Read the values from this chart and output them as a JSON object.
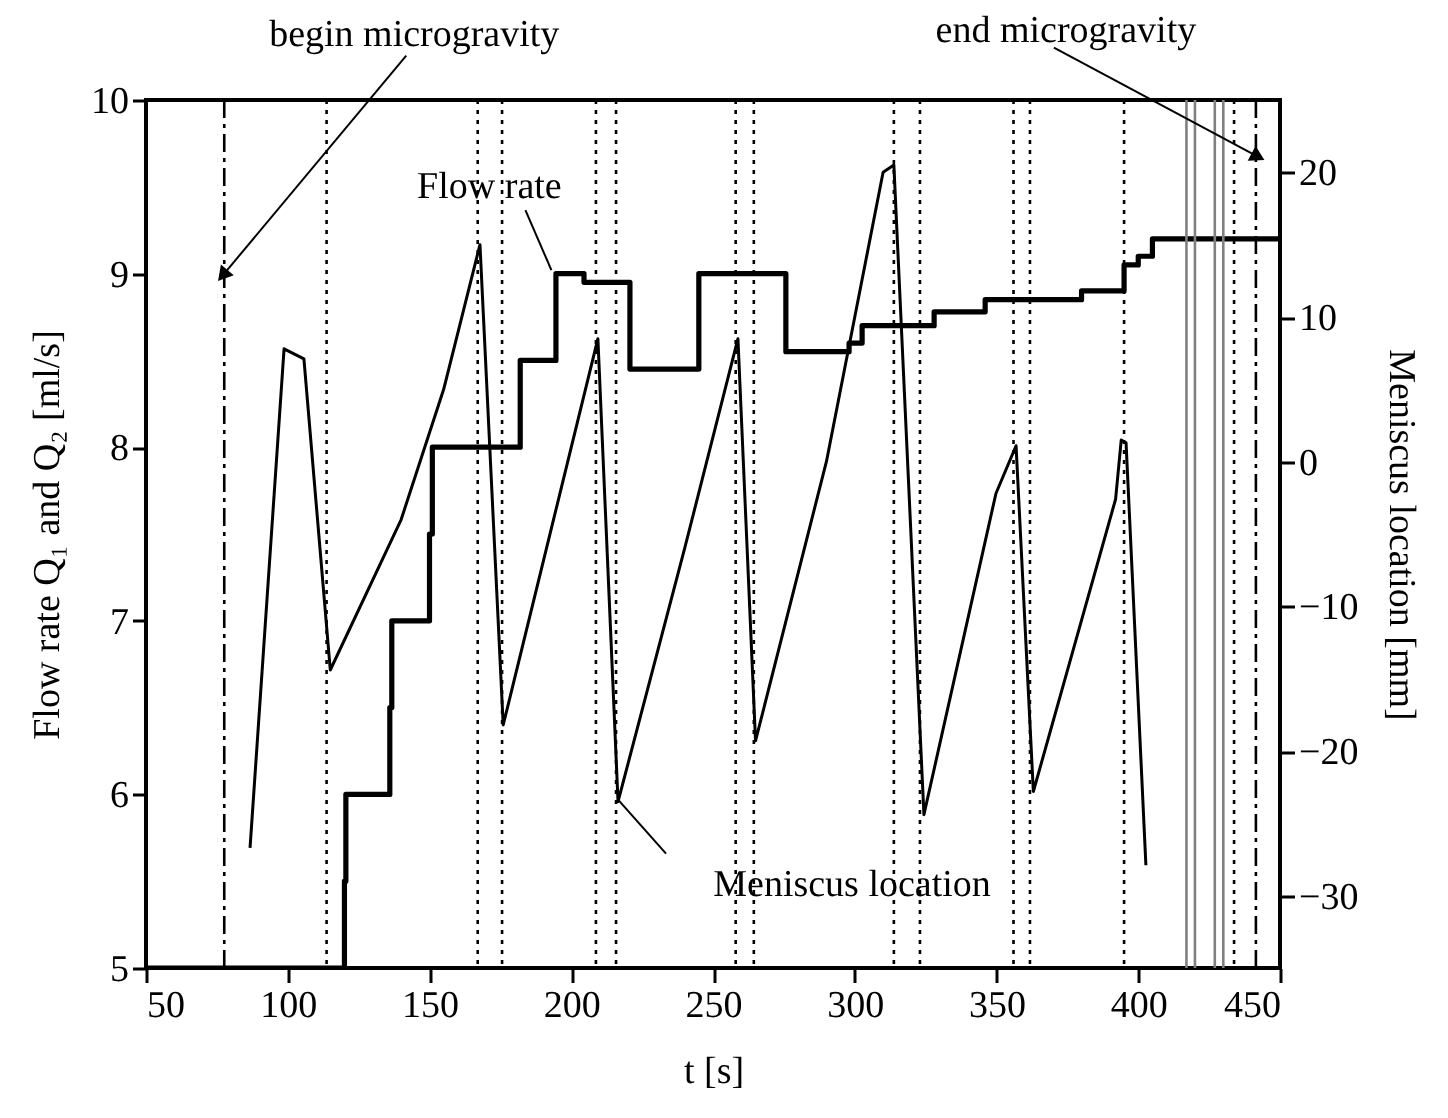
{
  "chart_data": {
    "type": "line",
    "xlabel": "t [s]",
    "ylabel": "Flow rate Q₁ and Q₂ [ml/s]",
    "y2label": "Meniscus location [mm]",
    "xlim": [
      50,
      450
    ],
    "xticks": [
      50,
      100,
      150,
      200,
      250,
      300,
      350,
      400,
      450
    ],
    "ylim": [
      5,
      10
    ],
    "yticks": [
      5,
      6,
      7,
      8,
      9,
      10
    ],
    "y2lim": [
      -35,
      25
    ],
    "y2ticks": [
      -30,
      -20,
      -10,
      0,
      10,
      20
    ],
    "grid": false,
    "series": [
      {
        "type": "step",
        "color": "#000000",
        "x": [
          50,
          120,
          120.5,
          136,
          136.7,
          150,
          151,
          182,
          194.6,
          204.5,
          220.7,
          245,
          275.7,
          298,
          302.6,
          328,
          346,
          380,
          395,
          400,
          405,
          450
        ],
        "values": [
          5,
          5.5,
          6,
          6.5,
          7,
          7.5,
          8,
          8.5,
          9,
          8.95,
          8.45,
          9,
          8.55,
          8.6,
          8.7,
          8.78,
          8.85,
          8.9,
          9.05,
          9.1,
          9.2,
          9.2
        ]
      },
      {
        "axis": "y2",
        "color": "#000000",
        "x": [
          86.7,
          98.7,
          105.7,
          115,
          140,
          155,
          167.8,
          176,
          195,
          209.4,
          216.5,
          240,
          258.8,
          265,
          290,
          310,
          313.8,
          324.4,
          349.8,
          356.9,
          363,
          392,
          394,
          395.7,
          402.7
        ],
        "values": [
          -26.7,
          7.8,
          7.1,
          -14.4,
          -4,
          5,
          15,
          -18.2,
          -3,
          8.5,
          -23.5,
          -6,
          8.5,
          -19.3,
          0,
          20,
          20.5,
          -24.4,
          -2.2,
          1.1,
          -22.8,
          -2.6,
          1.5,
          1.3,
          -27.9
        ]
      }
    ],
    "ref_lines": [
      {
        "axis": "x",
        "value": 77.6,
        "line_style": "dashed"
      },
      {
        "axis": "x",
        "value": 441.5,
        "line_style": "dashed"
      },
      {
        "axis": "x",
        "value": 113.7,
        "line_style": "dotted"
      },
      {
        "axis": "x",
        "value": 167,
        "line_style": "dotted"
      },
      {
        "axis": "x",
        "value": 175.6,
        "line_style": "dotted"
      },
      {
        "axis": "x",
        "value": 208.7,
        "line_style": "dotted"
      },
      {
        "axis": "x",
        "value": 215.8,
        "line_style": "dotted"
      },
      {
        "axis": "x",
        "value": 258,
        "line_style": "dotted"
      },
      {
        "axis": "x",
        "value": 264.4,
        "line_style": "dotted"
      },
      {
        "axis": "x",
        "value": 313.8,
        "line_style": "dotted"
      },
      {
        "axis": "x",
        "value": 323,
        "line_style": "dotted"
      },
      {
        "axis": "x",
        "value": 356,
        "line_style": "dotted"
      },
      {
        "axis": "x",
        "value": 361.8,
        "line_style": "dotted"
      },
      {
        "axis": "x",
        "value": 395,
        "line_style": "dotted"
      },
      {
        "axis": "x",
        "value": 433.8,
        "line_style": "dotted"
      },
      {
        "axis": "x",
        "value": 417,
        "color": "#808080",
        "line_style": "solid"
      },
      {
        "axis": "x",
        "value": 420,
        "color": "#808080",
        "line_style": "solid"
      },
      {
        "axis": "x",
        "value": 427,
        "color": "#808080",
        "line_style": "solid"
      },
      {
        "axis": "x",
        "value": 430,
        "color": "#808080",
        "line_style": "solid"
      }
    ],
    "annotations": [
      {
        "text": "begin microgravity",
        "x": 77.6,
        "y": 9.0
      },
      {
        "text": "end microgravity",
        "x": 441.5,
        "y": 9.68
      },
      {
        "text": "Flow rate",
        "x": 193,
        "y": 9.02
      },
      {
        "text": "Meniscus location",
        "x": 216.5,
        "y": 5.97
      }
    ]
  }
}
